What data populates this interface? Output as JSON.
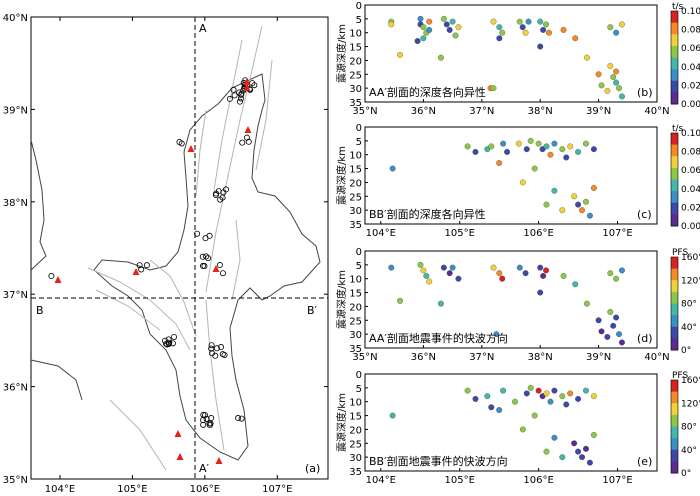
{
  "map_panel": {
    "label": "(a)",
    "x_ticks": [
      "104°E",
      "105°E",
      "106°E",
      "107°E"
    ],
    "y_ticks": [
      "35°N",
      "36°N",
      "37°N",
      "38°N",
      "39°N",
      "40°N"
    ],
    "x_ticks_values": [
      104,
      105,
      106,
      107
    ],
    "y_ticks_values": [
      35,
      36,
      37,
      38,
      39,
      40
    ],
    "lon_range": [
      103.6,
      107.7
    ],
    "lat_range": [
      35.0,
      40.0
    ],
    "profile_labels": {
      "A": "A",
      "A_prime": "A′",
      "B": "B",
      "B_prime": "B′"
    },
    "profile_AA_lon": 106.0,
    "profile_BB_lat": 37.0,
    "colors": {
      "station": "#e8201a",
      "event": "#000000",
      "fault": "#b0b0b0",
      "border": "#404040"
    }
  },
  "chart_data": [
    {
      "id": "b",
      "type": "scatter",
      "label": "(b)",
      "title": "AA′剖面的深度各向异性",
      "ylabel": "震源深度/km",
      "xlim": [
        35,
        40
      ],
      "ylim": [
        0,
        35
      ],
      "x_ticks": [
        "35°N",
        "36°N",
        "37°N",
        "38°N",
        "39°N",
        "40°N"
      ],
      "y_ticks": [
        "0",
        "5",
        "10",
        "15",
        "20",
        "25",
        "30",
        "35"
      ],
      "colorbar": {
        "title": "t/s",
        "ticks": [
          "0.10",
          "0.08",
          "0.06",
          "0.04",
          "0.02",
          "0.00"
        ],
        "range": [
          0,
          0.1
        ]
      },
      "points": [
        [
          35.45,
          6,
          0.05
        ],
        [
          35.45,
          7,
          0.07
        ],
        [
          35.6,
          18,
          0.07
        ],
        [
          35.95,
          5,
          0.03
        ],
        [
          35.95,
          7,
          0.01
        ],
        [
          36.0,
          8,
          0.05
        ],
        [
          36.05,
          10,
          0.06
        ],
        [
          36.0,
          12,
          0.04
        ],
        [
          35.9,
          13,
          0.02
        ],
        [
          36.1,
          6,
          0.08
        ],
        [
          36.1,
          9,
          0.03
        ],
        [
          36.35,
          5,
          0.06
        ],
        [
          36.4,
          7,
          0.02
        ],
        [
          36.5,
          6,
          0.04
        ],
        [
          36.45,
          9,
          0.01
        ],
        [
          36.6,
          8,
          0.07
        ],
        [
          36.55,
          11,
          0.05
        ],
        [
          36.3,
          19,
          0.05
        ],
        [
          37.2,
          6,
          0.07
        ],
        [
          37.3,
          8,
          0.04
        ],
        [
          37.35,
          10,
          0.06
        ],
        [
          37.3,
          12,
          0.02
        ],
        [
          37.15,
          30,
          0.08
        ],
        [
          37.2,
          30,
          0.06
        ],
        [
          37.65,
          6,
          0.05
        ],
        [
          37.7,
          8,
          0.02
        ],
        [
          37.8,
          6,
          0.03
        ],
        [
          37.75,
          10,
          0.07
        ],
        [
          38.0,
          6,
          0.04
        ],
        [
          38.1,
          7,
          0.06
        ],
        [
          38.05,
          9,
          0.01
        ],
        [
          38.15,
          10,
          0.08
        ],
        [
          38.0,
          15,
          0.01
        ],
        [
          38.4,
          9,
          0.08
        ],
        [
          38.6,
          12,
          0.08
        ],
        [
          38.8,
          19,
          0.07
        ],
        [
          39.0,
          25,
          0.09
        ],
        [
          39.05,
          29,
          0.05
        ],
        [
          39.15,
          31,
          0.07
        ],
        [
          39.2,
          22,
          0.07
        ],
        [
          39.25,
          26,
          0.06
        ],
        [
          39.3,
          28,
          0.04
        ],
        [
          39.3,
          24,
          0.08
        ],
        [
          39.35,
          30,
          0.06
        ],
        [
          39.4,
          33,
          0.04
        ],
        [
          39.2,
          8,
          0.05
        ],
        [
          39.3,
          10,
          0.03
        ],
        [
          39.4,
          7,
          0.07
        ]
      ]
    },
    {
      "id": "c",
      "type": "scatter",
      "label": "(c)",
      "title": "BB′剖面的深度各向异性",
      "ylabel": "震源深度/km",
      "xlim": [
        103.8,
        107.5
      ],
      "ylim": [
        0,
        35
      ],
      "x_ticks": [
        "104°E",
        "105°E",
        "106°E",
        "107°E"
      ],
      "y_ticks": [
        "0",
        "5",
        "10",
        "15",
        "20",
        "25",
        "30",
        "35"
      ],
      "colorbar": {
        "title": "t/s",
        "ticks": [
          "0.10",
          "0.08",
          "0.06",
          "0.04",
          "0.02",
          "0.00"
        ],
        "range": [
          0,
          0.1
        ]
      },
      "points": [
        [
          104.15,
          15,
          0.03
        ],
        [
          105.1,
          7,
          0.05
        ],
        [
          105.2,
          9,
          0.02
        ],
        [
          105.35,
          8,
          0.04
        ],
        [
          105.4,
          7,
          0.06
        ],
        [
          105.55,
          6,
          0.03
        ],
        [
          105.6,
          9,
          0.01
        ],
        [
          105.75,
          6,
          0.07
        ],
        [
          105.85,
          8,
          0.02
        ],
        [
          105.9,
          5,
          0.05
        ],
        [
          106.0,
          6,
          0.06
        ],
        [
          106.05,
          8,
          0.01
        ],
        [
          106.1,
          7,
          0.04
        ],
        [
          106.15,
          10,
          0.08
        ],
        [
          106.2,
          6,
          0.03
        ],
        [
          106.3,
          8,
          0.06
        ],
        [
          106.35,
          11,
          0.02
        ],
        [
          106.4,
          7,
          0.07
        ],
        [
          106.5,
          9,
          0.04
        ],
        [
          106.6,
          6,
          0.05
        ],
        [
          106.7,
          8,
          0.02
        ],
        [
          105.5,
          13,
          0.08
        ],
        [
          105.8,
          20,
          0.07
        ],
        [
          105.95,
          15,
          0.06
        ],
        [
          106.2,
          23,
          0.04
        ],
        [
          106.45,
          25,
          0.07
        ],
        [
          106.5,
          28,
          0.01
        ],
        [
          106.55,
          30,
          0.09
        ],
        [
          106.6,
          27,
          0.06
        ],
        [
          106.65,
          32,
          0.03
        ],
        [
          106.3,
          30,
          0.07
        ],
        [
          106.7,
          22,
          0.08
        ],
        [
          106.1,
          28,
          0.05
        ]
      ]
    },
    {
      "id": "d",
      "type": "scatter",
      "label": "(d)",
      "title": "AA′剖面地震事件的快波方向",
      "ylabel": "震源深度/km",
      "xlim": [
        35,
        40
      ],
      "ylim": [
        0,
        35
      ],
      "x_ticks": [
        "35°N",
        "36°N",
        "37°N",
        "38°N",
        "39°N",
        "40°N"
      ],
      "y_ticks": [
        "0",
        "5",
        "10",
        "15",
        "20",
        "25",
        "30",
        "35"
      ],
      "colorbar": {
        "title": "PFS",
        "ticks": [
          "160°",
          "120°",
          "80°",
          "40°",
          "0°"
        ],
        "range": [
          0,
          180
        ]
      },
      "points": [
        [
          35.45,
          6,
          60
        ],
        [
          35.6,
          18,
          90
        ],
        [
          35.95,
          5,
          100
        ],
        [
          36.0,
          7,
          120
        ],
        [
          36.05,
          9,
          80
        ],
        [
          36.1,
          11,
          140
        ],
        [
          36.35,
          6,
          20
        ],
        [
          36.45,
          8,
          10
        ],
        [
          36.5,
          6,
          60
        ],
        [
          36.6,
          10,
          30
        ],
        [
          36.3,
          19,
          80
        ],
        [
          37.2,
          6,
          130
        ],
        [
          37.3,
          8,
          150
        ],
        [
          37.35,
          10,
          170
        ],
        [
          37.25,
          30,
          60
        ],
        [
          37.65,
          6,
          60
        ],
        [
          37.75,
          8,
          30
        ],
        [
          38.0,
          6,
          20
        ],
        [
          38.05,
          9,
          10
        ],
        [
          38.1,
          7,
          170
        ],
        [
          38.0,
          15,
          20
        ],
        [
          38.4,
          9,
          90
        ],
        [
          38.6,
          12,
          80
        ],
        [
          38.8,
          19,
          100
        ],
        [
          39.0,
          25,
          20
        ],
        [
          39.05,
          29,
          10
        ],
        [
          39.15,
          31,
          30
        ],
        [
          39.2,
          22,
          110
        ],
        [
          39.25,
          27,
          20
        ],
        [
          39.3,
          24,
          15
        ],
        [
          39.35,
          30,
          40
        ],
        [
          39.4,
          33,
          10
        ],
        [
          39.2,
          8,
          90
        ],
        [
          39.3,
          10,
          110
        ],
        [
          39.4,
          7,
          50
        ]
      ]
    },
    {
      "id": "e",
      "type": "scatter",
      "label": "(e)",
      "title": "BB′剖面地震事件的快波方向",
      "ylabel": "震源深度/km",
      "xlim": [
        103.8,
        107.5
      ],
      "ylim": [
        0,
        35
      ],
      "x_ticks": [
        "104°E",
        "105°E",
        "106°E",
        "107°E"
      ],
      "y_ticks": [
        "0",
        "5",
        "10",
        "15",
        "20",
        "25",
        "30",
        "35"
      ],
      "colorbar": {
        "title": "PFS",
        "ticks": [
          "160°",
          "120°",
          "80°",
          "40°",
          "0°"
        ],
        "range": [
          0,
          180
        ]
      },
      "points": [
        [
          104.15,
          15,
          80
        ],
        [
          105.1,
          6,
          100
        ],
        [
          105.2,
          9,
          30
        ],
        [
          105.35,
          8,
          70
        ],
        [
          105.4,
          12,
          20
        ],
        [
          105.55,
          6,
          80
        ],
        [
          105.7,
          10,
          100
        ],
        [
          105.85,
          7,
          30
        ],
        [
          105.9,
          5,
          90
        ],
        [
          106.0,
          6,
          170
        ],
        [
          106.05,
          8,
          10
        ],
        [
          106.1,
          7,
          130
        ],
        [
          106.15,
          10,
          60
        ],
        [
          106.2,
          6,
          20
        ],
        [
          106.3,
          8,
          100
        ],
        [
          106.35,
          11,
          30
        ],
        [
          106.4,
          7,
          160
        ],
        [
          106.5,
          9,
          20
        ],
        [
          106.6,
          6,
          80
        ],
        [
          106.7,
          8,
          120
        ],
        [
          105.5,
          13,
          60
        ],
        [
          105.8,
          20,
          90
        ],
        [
          105.95,
          15,
          110
        ],
        [
          106.2,
          23,
          40
        ],
        [
          106.45,
          25,
          10
        ],
        [
          106.5,
          28,
          20
        ],
        [
          106.55,
          30,
          30
        ],
        [
          106.6,
          27,
          10
        ],
        [
          106.65,
          32,
          20
        ],
        [
          106.3,
          30,
          70
        ],
        [
          106.7,
          22,
          90
        ],
        [
          106.1,
          28,
          100
        ]
      ]
    }
  ]
}
